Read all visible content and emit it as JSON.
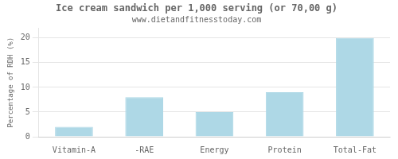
{
  "chart_data": {
    "type": "bar",
    "title": "Ice cream sandwich per 1,000 serving (or 70,00 g)",
    "subtitle": "www.dietandfitnesstoday.com",
    "categories": [
      "Vitamin-A",
      "-RAE",
      "Energy",
      "Protein",
      "Total-Fat"
    ],
    "values": [
      2,
      8,
      5,
      9,
      20
    ],
    "color": "#aed8e6",
    "ylabel": "Percentage of RDH (%)",
    "ylim": [
      0,
      22
    ],
    "yticks": [
      0,
      5,
      10,
      15,
      20
    ],
    "grid": true
  }
}
